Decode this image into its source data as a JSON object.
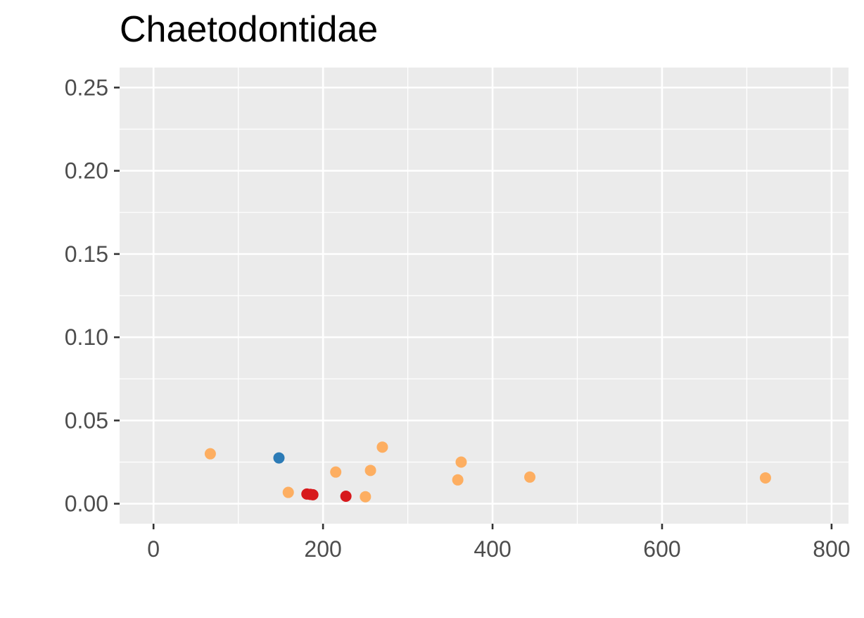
{
  "chart_data": {
    "type": "scatter",
    "title": "Chaetodontidae",
    "xlabel": "",
    "ylabel": "",
    "xlim": [
      -40,
      820
    ],
    "ylim": [
      -0.012,
      0.262
    ],
    "x_ticks": [
      0,
      200,
      400,
      600,
      800
    ],
    "x_tick_labels": [
      "0",
      "200",
      "400",
      "600",
      "800"
    ],
    "y_ticks": [
      0.0,
      0.05,
      0.1,
      0.15,
      0.2,
      0.25
    ],
    "y_tick_labels": [
      "0.00",
      "0.05",
      "0.10",
      "0.15",
      "0.20",
      "0.25"
    ],
    "grid": true,
    "legend": "none",
    "colors": {
      "panel_background": "#ebebeb",
      "grid": "#ffffff",
      "orange": "#fdae61",
      "red": "#d7191c",
      "blue": "#2c7bb6",
      "tick": "#333333",
      "tick_label": "#4d4d4d"
    },
    "points": [
      {
        "x": 67,
        "y": 0.03,
        "color": "orange"
      },
      {
        "x": 148,
        "y": 0.0275,
        "color": "blue"
      },
      {
        "x": 159,
        "y": 0.0068,
        "color": "orange"
      },
      {
        "x": 181,
        "y": 0.0058,
        "color": "red"
      },
      {
        "x": 185,
        "y": 0.0056,
        "color": "red"
      },
      {
        "x": 188,
        "y": 0.0054,
        "color": "red"
      },
      {
        "x": 215,
        "y": 0.019,
        "color": "orange"
      },
      {
        "x": 227,
        "y": 0.0045,
        "color": "red"
      },
      {
        "x": 250,
        "y": 0.0042,
        "color": "orange"
      },
      {
        "x": 256,
        "y": 0.02,
        "color": "orange"
      },
      {
        "x": 270,
        "y": 0.034,
        "color": "orange"
      },
      {
        "x": 359,
        "y": 0.0143,
        "color": "orange"
      },
      {
        "x": 363,
        "y": 0.025,
        "color": "orange"
      },
      {
        "x": 444,
        "y": 0.016,
        "color": "orange"
      },
      {
        "x": 722,
        "y": 0.0155,
        "color": "orange"
      }
    ]
  }
}
